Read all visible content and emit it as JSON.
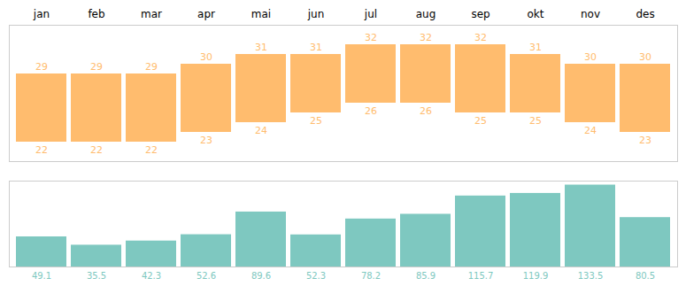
{
  "chart_data": {
    "type": "bar",
    "categories": [
      "jan",
      "feb",
      "mar",
      "apr",
      "mai",
      "jun",
      "jul",
      "aug",
      "sep",
      "okt",
      "nov",
      "des"
    ],
    "series": [
      {
        "type": "range",
        "color": "#FFBC6E",
        "axis": "y2",
        "low": [
          22,
          22,
          22,
          23,
          24,
          25,
          26,
          26,
          25,
          25,
          24,
          23
        ],
        "values": [
          29,
          29,
          29,
          30,
          31,
          31,
          32,
          32,
          32,
          31,
          30,
          30
        ]
      },
      {
        "type": "bar",
        "color": "#7EC8C0",
        "values": [
          49.1,
          35.5,
          42.3,
          52.6,
          89.6,
          52.3,
          78.2,
          85.9,
          115.7,
          119.9,
          133.5,
          80.5
        ]
      }
    ],
    "ylim": [
      0,
      140
    ],
    "y2lim": [
      20,
      34
    ],
    "grid": false,
    "data_labels": true,
    "tick_labels": "x"
  }
}
